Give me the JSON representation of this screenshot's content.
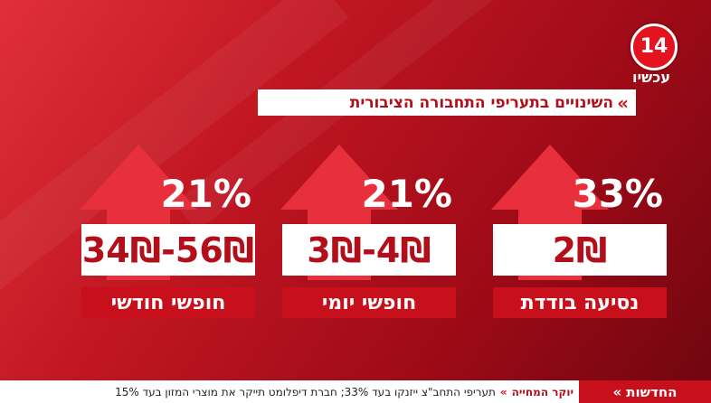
{
  "logo": {
    "number": "14",
    "name": "עכשיו"
  },
  "header": {
    "title": "השינויים בתעריפי התחבורה הציבורית"
  },
  "cards": [
    {
      "percent": "33%",
      "price": "2₪",
      "label": "נסיעה בודדת"
    },
    {
      "percent": "21%",
      "price": "3₪-4₪",
      "label": "חופשי יומי"
    },
    {
      "percent": "21%",
      "price": "34₪-56₪",
      "label": "חופשי חודשי"
    }
  ],
  "ticker": {
    "channel": "החדשות",
    "topic": "יוקר המחייה",
    "text": "תעריפי התחב\"צ ייזנקו בעד 33%; חברת דיפלומט תייקר את מוצרי המזון בעד 15%"
  }
}
